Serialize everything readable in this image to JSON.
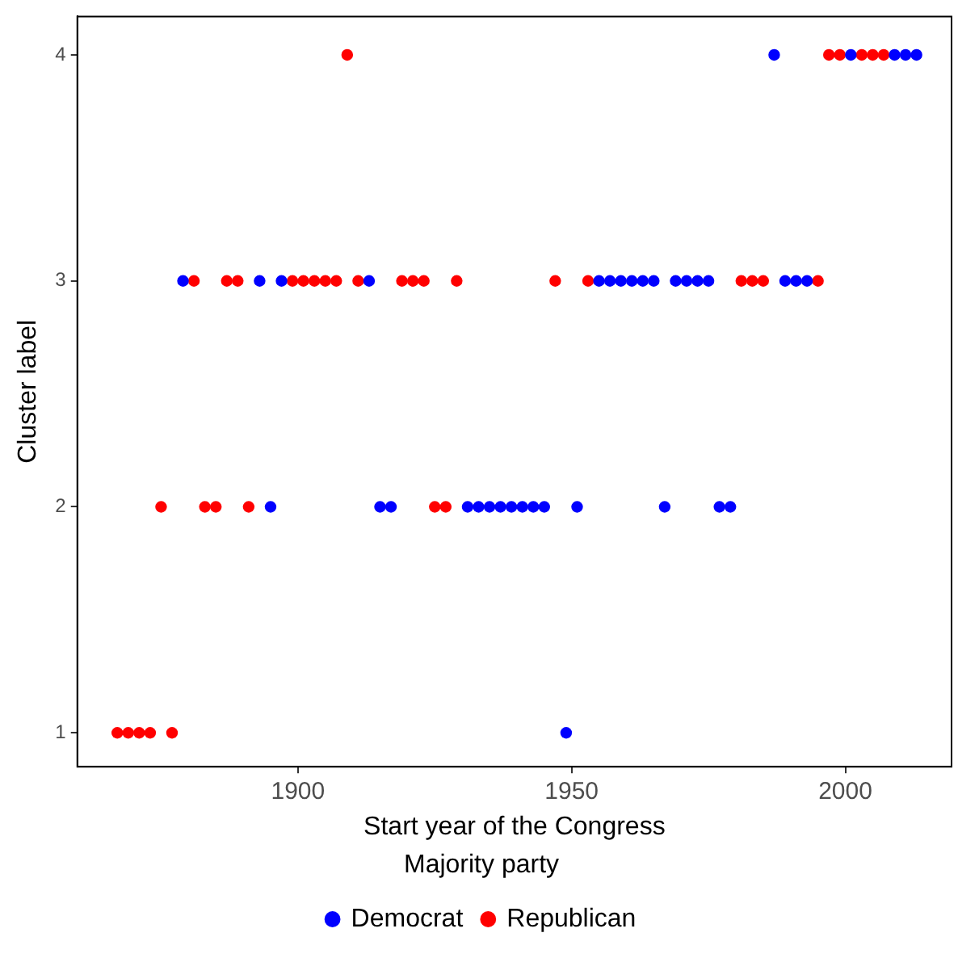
{
  "chart_data": {
    "type": "scatter",
    "xlabel": "Start year of the Congress",
    "ylabel": "Cluster label",
    "legend_title": "Majority party",
    "legend": "bottom",
    "grid": false,
    "marker": "circle",
    "xlim": [
      1859.7,
      2019.4
    ],
    "xticks": [
      1900,
      1950,
      2000
    ],
    "ylim": [
      0.85,
      4.17
    ],
    "yticks": [
      1,
      2,
      3,
      4
    ],
    "series": [
      {
        "name": "Democrat",
        "color": "#0000ff",
        "x": [
          1949,
          1895,
          1915,
          1917,
          1931,
          1933,
          1935,
          1937,
          1939,
          1941,
          1943,
          1945,
          1951,
          1967,
          1977,
          1979,
          1879,
          1893,
          1897,
          1913,
          1955,
          1957,
          1959,
          1961,
          1963,
          1965,
          1969,
          1971,
          1973,
          1975,
          1989,
          1991,
          1993,
          1987,
          2001,
          2009,
          2011,
          2013
        ],
        "values": [
          1,
          2,
          2,
          2,
          2,
          2,
          2,
          2,
          2,
          2,
          2,
          2,
          2,
          2,
          2,
          2,
          3,
          3,
          3,
          3,
          3,
          3,
          3,
          3,
          3,
          3,
          3,
          3,
          3,
          3,
          3,
          3,
          3,
          4,
          4,
          4,
          4,
          4
        ]
      },
      {
        "name": "Republican",
        "color": "#ff0000",
        "x": [
          1867,
          1869,
          1871,
          1873,
          1877,
          1875,
          1883,
          1885,
          1891,
          1925,
          1927,
          1881,
          1887,
          1889,
          1899,
          1901,
          1903,
          1905,
          1907,
          1911,
          1919,
          1921,
          1923,
          1929,
          1947,
          1953,
          1981,
          1983,
          1985,
          1995,
          1909,
          1997,
          1999,
          2003,
          2005,
          2007
        ],
        "values": [
          1,
          1,
          1,
          1,
          1,
          2,
          2,
          2,
          2,
          2,
          2,
          3,
          3,
          3,
          3,
          3,
          3,
          3,
          3,
          3,
          3,
          3,
          3,
          3,
          3,
          3,
          3,
          3,
          3,
          3,
          4,
          4,
          4,
          4,
          4,
          4
        ]
      }
    ]
  }
}
